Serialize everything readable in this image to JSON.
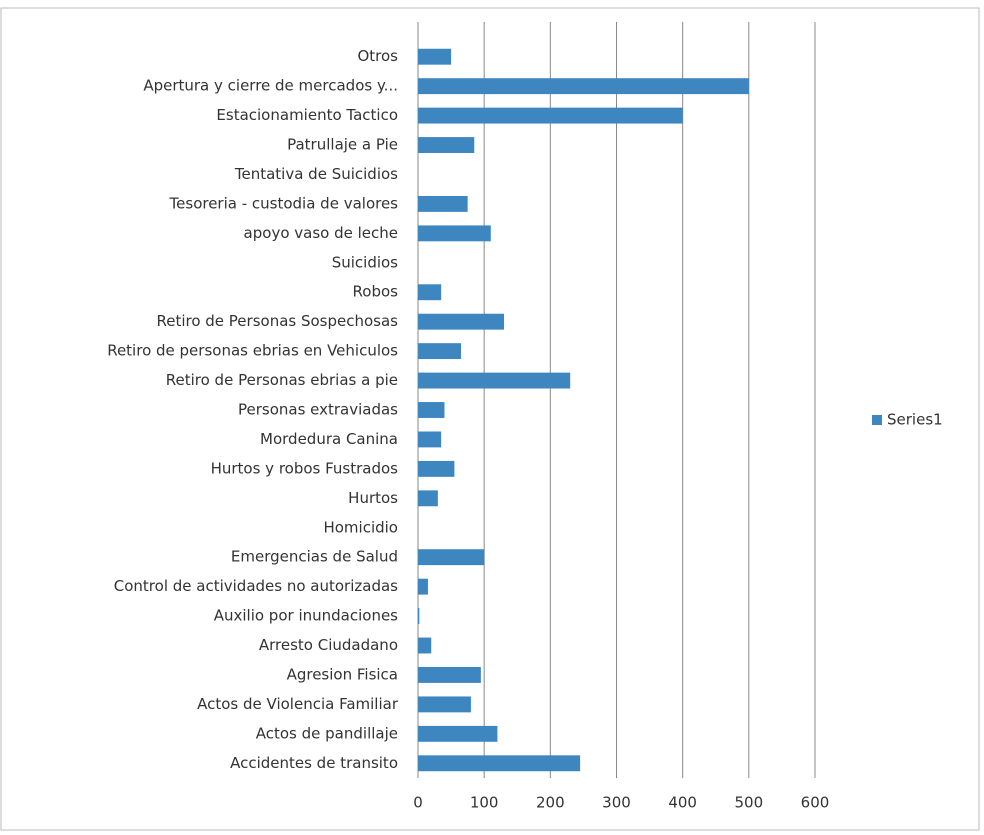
{
  "chart_data": {
    "type": "bar",
    "orientation": "horizontal",
    "categories": [
      "Otros",
      "Apertura y cierre de mercados y...",
      "Estacionamiento Tactico",
      "Patrullaje a Pie",
      "Tentativa de Suicidios",
      "Tesoreria - custodia de valores",
      "apoyo vaso de leche",
      "Suicidios",
      "Robos",
      "Retiro de Personas Sospechosas",
      "Retiro de personas ebrias en Vehiculos",
      "Retiro de Personas ebrias a pie",
      "Personas extraviadas",
      "Mordedura Canina",
      "Hurtos y robos Fustrados",
      "Hurtos",
      "Homicidio",
      "Emergencias de Salud",
      "Control de actividades no autorizadas",
      "Auxilio por inundaciones",
      "Arresto Ciudadano",
      "Agresion Fisica",
      "Actos de Violencia Familiar",
      "Actos de pandillaje",
      "Accidentes de transito"
    ],
    "series": [
      {
        "name": "Series1",
        "color": "#3d86c0",
        "values": [
          50,
          500,
          400,
          85,
          0,
          75,
          110,
          0,
          35,
          130,
          65,
          230,
          40,
          35,
          55,
          30,
          0,
          100,
          15,
          2,
          20,
          95,
          80,
          120,
          245
        ]
      }
    ],
    "xlim": [
      0,
      600
    ],
    "xticks": [
      0,
      100,
      200,
      300,
      400,
      500,
      600
    ],
    "grid": true,
    "legend": "right"
  }
}
